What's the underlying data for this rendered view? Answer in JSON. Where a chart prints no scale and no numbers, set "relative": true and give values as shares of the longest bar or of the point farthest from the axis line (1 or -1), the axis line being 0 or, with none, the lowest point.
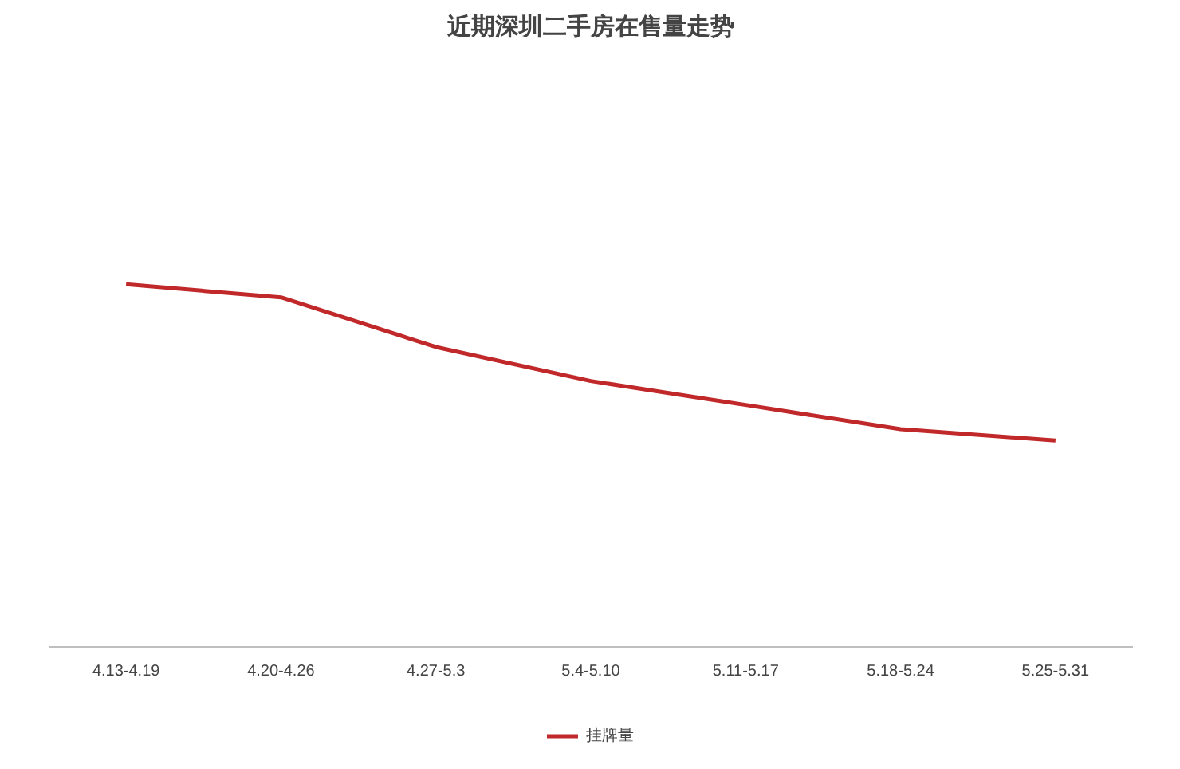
{
  "chart_data": {
    "type": "line",
    "title": "近期深圳二手房在售量走势",
    "relative": true,
    "categories": [
      "4.13-4.19",
      "4.20-4.26",
      "4.27-5.3",
      "5.4-5.10",
      "5.11-5.17",
      "5.18-5.24",
      "5.25-5.31"
    ],
    "series": [
      {
        "name": "挂牌量",
        "color": "#c0282a",
        "values": [
          1,
          0.964,
          0.827,
          0.733,
          0.667,
          0.6,
          0.569
        ]
      }
    ],
    "legend": "bottom"
  }
}
